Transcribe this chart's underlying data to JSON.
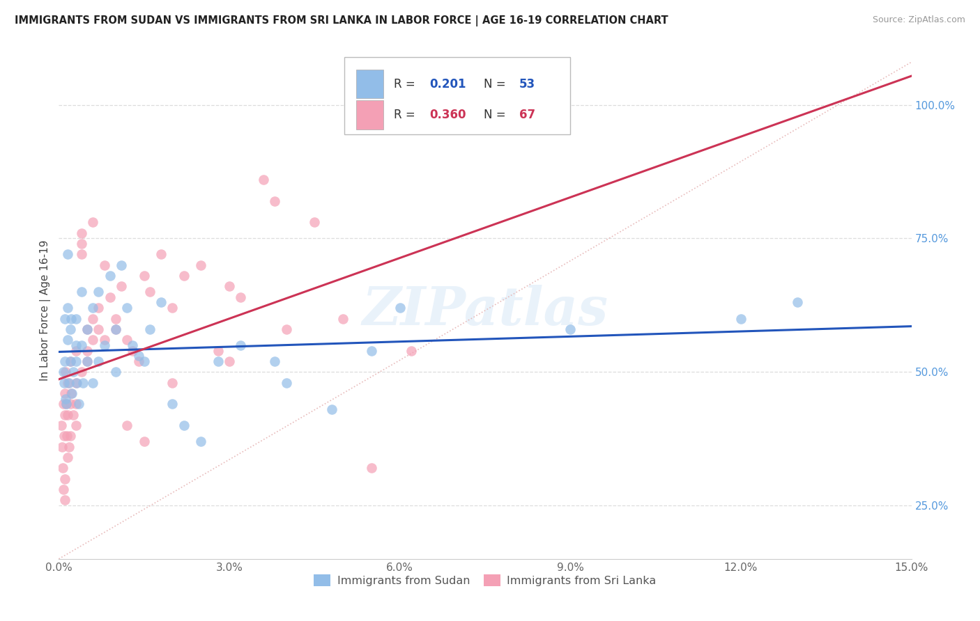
{
  "title": "IMMIGRANTS FROM SUDAN VS IMMIGRANTS FROM SRI LANKA IN LABOR FORCE | AGE 16-19 CORRELATION CHART",
  "source": "Source: ZipAtlas.com",
  "ylabel": "In Labor Force | Age 16-19",
  "xlim": [
    0.0,
    0.15
  ],
  "ylim": [
    0.15,
    1.08
  ],
  "xticks": [
    0.0,
    0.03,
    0.06,
    0.09,
    0.12,
    0.15
  ],
  "xticklabels": [
    "0.0%",
    "3.0%",
    "6.0%",
    "9.0%",
    "12.0%",
    "15.0%"
  ],
  "yticks": [
    0.25,
    0.5,
    0.75,
    1.0
  ],
  "yticklabels": [
    "25.0%",
    "50.0%",
    "75.0%",
    "100.0%"
  ],
  "sudan_R": 0.201,
  "sudan_N": 53,
  "srilanka_R": 0.36,
  "srilanka_N": 67,
  "sudan_color": "#92BDE8",
  "srilanka_color": "#F4A0B5",
  "sudan_line_color": "#2255BB",
  "srilanka_line_color": "#CC3355",
  "diagonal_color": "#E8BBBB",
  "watermark": "ZIPatlas",
  "legend_sudan_label": "Immigrants from Sudan",
  "legend_srilanka_label": "Immigrants from Sri Lanka",
  "sudan_x": [
    0.0008,
    0.0009,
    0.001,
    0.001,
    0.0012,
    0.0013,
    0.0015,
    0.0015,
    0.0016,
    0.0018,
    0.002,
    0.002,
    0.0022,
    0.0023,
    0.0025,
    0.003,
    0.003,
    0.003,
    0.0032,
    0.0035,
    0.004,
    0.004,
    0.0042,
    0.005,
    0.005,
    0.006,
    0.006,
    0.007,
    0.007,
    0.008,
    0.009,
    0.01,
    0.01,
    0.011,
    0.012,
    0.013,
    0.014,
    0.015,
    0.016,
    0.018,
    0.02,
    0.022,
    0.025,
    0.028,
    0.032,
    0.038,
    0.04,
    0.048,
    0.055,
    0.06,
    0.09,
    0.12,
    0.13
  ],
  "sudan_y": [
    0.5,
    0.48,
    0.6,
    0.52,
    0.45,
    0.44,
    0.72,
    0.62,
    0.56,
    0.48,
    0.58,
    0.52,
    0.6,
    0.46,
    0.5,
    0.55,
    0.52,
    0.6,
    0.48,
    0.44,
    0.65,
    0.55,
    0.48,
    0.58,
    0.52,
    0.62,
    0.48,
    0.65,
    0.52,
    0.55,
    0.68,
    0.58,
    0.5,
    0.7,
    0.62,
    0.55,
    0.53,
    0.52,
    0.58,
    0.63,
    0.44,
    0.4,
    0.37,
    0.52,
    0.55,
    0.52,
    0.48,
    0.43,
    0.54,
    0.62,
    0.58,
    0.6,
    0.63
  ],
  "srilanka_x": [
    0.0005,
    0.0006,
    0.0007,
    0.0008,
    0.0008,
    0.0009,
    0.001,
    0.001,
    0.001,
    0.001,
    0.0012,
    0.0013,
    0.0014,
    0.0015,
    0.0015,
    0.0016,
    0.0018,
    0.002,
    0.002,
    0.002,
    0.0022,
    0.0025,
    0.003,
    0.003,
    0.003,
    0.003,
    0.004,
    0.004,
    0.004,
    0.005,
    0.005,
    0.005,
    0.006,
    0.006,
    0.007,
    0.007,
    0.008,
    0.009,
    0.01,
    0.01,
    0.011,
    0.012,
    0.013,
    0.014,
    0.015,
    0.016,
    0.018,
    0.02,
    0.022,
    0.025,
    0.028,
    0.03,
    0.032,
    0.036,
    0.038,
    0.04,
    0.045,
    0.05,
    0.055,
    0.062,
    0.03,
    0.012,
    0.015,
    0.02,
    0.004,
    0.006,
    0.008
  ],
  "srilanka_y": [
    0.4,
    0.36,
    0.32,
    0.28,
    0.44,
    0.38,
    0.3,
    0.26,
    0.46,
    0.42,
    0.5,
    0.44,
    0.38,
    0.34,
    0.48,
    0.42,
    0.36,
    0.52,
    0.44,
    0.38,
    0.46,
    0.42,
    0.54,
    0.48,
    0.44,
    0.4,
    0.76,
    0.72,
    0.5,
    0.58,
    0.54,
    0.52,
    0.6,
    0.56,
    0.62,
    0.58,
    0.56,
    0.64,
    0.6,
    0.58,
    0.66,
    0.56,
    0.54,
    0.52,
    0.68,
    0.65,
    0.72,
    0.62,
    0.68,
    0.7,
    0.54,
    0.66,
    0.64,
    0.86,
    0.82,
    0.58,
    0.78,
    0.6,
    0.32,
    0.54,
    0.52,
    0.4,
    0.37,
    0.48,
    0.74,
    0.78,
    0.7
  ]
}
